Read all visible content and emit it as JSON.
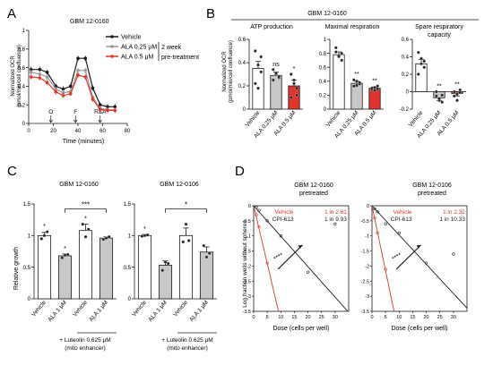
{
  "colors": {
    "black": "#1a1a1a",
    "grey": "#9a9a9a",
    "red": "#e1352b",
    "lightgrey": "#c8c8c8",
    "white": "#ffffff",
    "diag": "#555555"
  },
  "panels": {
    "A": "A",
    "B": "B",
    "C": "C",
    "D": "D"
  },
  "panelA": {
    "title": "GBM 12-0160",
    "ylabel_line1": "Normalized OCR",
    "ylabel_line2": "(pmol/min/cell confluence)",
    "xlabel": "Time (minutes)",
    "legend": [
      "Vehicle",
      "ALA 0.25 μM",
      "ALA 0.5 μM"
    ],
    "legend_note_line1": "2 week",
    "legend_note_line2": "pre-treatment",
    "injections": [
      "O",
      "F",
      "R&A"
    ]
  },
  "panelB": {
    "title": "GBM 12-0160",
    "ylabel_line1": "Normalized OCR",
    "ylabel_line2": "(pmol/min/cell confluence)",
    "subtitles": [
      "ATP production",
      "Maximal respiration",
      "Spare respiratory",
      "capacity"
    ]
  },
  "panelC": {
    "ylabel": "Relative growth",
    "footnote_line1": "+ Luteolin 0.625 μM",
    "footnote_line2": "(mito enhancer)"
  },
  "panelD": {
    "ylabel": "Log fraction wells without spheres",
    "xlabel": "Dose (cells per well)",
    "stars": "****"
  },
  "chart_data": [
    {
      "panel": "A",
      "type": "line",
      "title": "GBM 12-0160",
      "xlabel": "Time (minutes)",
      "ylabel": "Normalized OCR (pmol/min/cell confluence)",
      "xlim": [
        0,
        80
      ],
      "ylim": [
        0,
        1.0
      ],
      "xticks": [
        0,
        20,
        40,
        60,
        80
      ],
      "yticks": [
        0.0,
        0.2,
        0.4,
        0.6,
        0.8,
        1.0
      ],
      "x": [
        2,
        9,
        15,
        22,
        28,
        34,
        40,
        46,
        52,
        58,
        64,
        70
      ],
      "series": [
        {
          "name": "Vehicle",
          "color": "#1a1a1a",
          "values": [
            0.58,
            0.58,
            0.55,
            0.4,
            0.37,
            0.4,
            0.7,
            0.7,
            0.38,
            0.2,
            0.18,
            0.18
          ]
        },
        {
          "name": "ALA 0.25 μM",
          "color": "#9a9a9a",
          "values": [
            0.55,
            0.53,
            0.5,
            0.37,
            0.33,
            0.34,
            0.57,
            0.57,
            0.28,
            0.16,
            0.15,
            0.14
          ]
        },
        {
          "name": "ALA 0.5 μM",
          "color": "#e1352b",
          "values": [
            0.5,
            0.49,
            0.44,
            0.34,
            0.3,
            0.32,
            0.52,
            0.5,
            0.26,
            0.15,
            0.14,
            0.14
          ]
        }
      ],
      "annotations": [
        "O",
        "F",
        "R&A"
      ],
      "legend_note": "2 week pre-treatment"
    },
    {
      "panel": "B-ATP",
      "type": "bar",
      "title": "ATP production",
      "categories": [
        "Vehicle",
        "ALA 0.25 μM",
        "ALA 0.5 μM"
      ],
      "values": [
        0.35,
        0.29,
        0.2
      ],
      "errors": [
        0.06,
        0.03,
        0.05
      ],
      "points": [
        [
          0.5,
          0.38,
          0.32,
          0.22,
          0.18,
          0.45
        ],
        [
          0.34,
          0.3,
          0.27,
          0.25,
          0.31,
          0.28
        ],
        [
          0.3,
          0.22,
          0.12,
          0.1,
          0.25,
          0.18
        ]
      ],
      "significance": [
        "",
        "ns",
        "*"
      ],
      "colors": [
        "#ffffff",
        "#c8c8c8",
        "#e1352b"
      ],
      "ylim": [
        0.0,
        0.6
      ],
      "yticks": [
        0.0,
        0.2,
        0.4,
        0.6
      ]
    },
    {
      "panel": "B-MAX",
      "type": "bar",
      "title": "Maximal respiration",
      "categories": [
        "Vehicle",
        "ALA 0.25 μM",
        "ALA 0.5 μM"
      ],
      "values": [
        0.78,
        0.37,
        0.3
      ],
      "errors": [
        0.04,
        0.03,
        0.02
      ],
      "points": [
        [
          0.82,
          0.75,
          0.7,
          0.88,
          0.76,
          0.8
        ],
        [
          0.33,
          0.4,
          0.36,
          0.42,
          0.34,
          0.38
        ],
        [
          0.28,
          0.27,
          0.33,
          0.3,
          0.31,
          0.29
        ]
      ],
      "significance": [
        "",
        "**",
        "**"
      ],
      "colors": [
        "#ffffff",
        "#c8c8c8",
        "#e1352b"
      ],
      "ylim": [
        0.0,
        1.0
      ],
      "yticks": [
        0.0,
        0.2,
        0.4,
        0.6,
        0.8,
        1.0
      ]
    },
    {
      "panel": "B-SPARE",
      "type": "bar",
      "title": "Spare respiratory capacity",
      "categories": [
        "Vehicle",
        "ALA 0.25 μM",
        "ALA 0.5 μM"
      ],
      "values": [
        0.32,
        -0.07,
        -0.02
      ],
      "errors": [
        0.05,
        0.03,
        0.03
      ],
      "points": [
        [
          0.45,
          0.38,
          0.28,
          0.2,
          0.32,
          0.35
        ],
        [
          -0.05,
          -0.1,
          -0.12,
          0.0,
          -0.08,
          -0.04
        ],
        [
          -0.05,
          -0.1,
          0.02,
          0.0,
          -0.03,
          -0.01
        ]
      ],
      "significance": [
        "",
        "**",
        "**"
      ],
      "colors": [
        "#ffffff",
        "#c8c8c8",
        "#e1352b"
      ],
      "ylim": [
        -0.2,
        0.6
      ],
      "yticks": [
        -0.2,
        0.0,
        0.2,
        0.4,
        0.6
      ]
    },
    {
      "panel": "C-0160",
      "type": "bar",
      "title": "GBM 12-0160",
      "ylabel": "Relative growth",
      "categories": [
        "Vehicle",
        "ALA 1 μM",
        "Vehicle",
        "ALA 1 μM"
      ],
      "values": [
        1.0,
        0.68,
        1.08,
        0.96
      ],
      "errors": [
        0.05,
        0.03,
        0.1,
        0.02
      ],
      "points": [
        [
          0.95,
          1.0,
          1.06
        ],
        [
          0.65,
          0.69,
          0.7
        ],
        [
          1.18,
          0.98,
          1.1
        ],
        [
          0.94,
          0.96,
          0.98
        ]
      ],
      "colors": [
        "#ffffff",
        "#c8c8c8",
        "#ffffff",
        "#c8c8c8"
      ],
      "significance": "***",
      "ylim": [
        0.0,
        1.5
      ],
      "yticks": [
        0.0,
        0.5,
        1.0,
        1.5
      ],
      "group_label": "+ Luteolin 0.625 μM (mito enhancer)"
    },
    {
      "panel": "C-0106",
      "type": "bar",
      "title": "GBM 12-0106",
      "categories": [
        "Vehicle",
        "ALA 1 μM",
        "Vehicle",
        "ALA 1 μM"
      ],
      "values": [
        1.0,
        0.53,
        1.0,
        0.74
      ],
      "errors": [
        0.02,
        0.07,
        0.12,
        0.08
      ],
      "points": [
        [
          0.99,
          1.0,
          1.01
        ],
        [
          0.45,
          0.58,
          0.56
        ],
        [
          0.9,
          1.18,
          0.92
        ],
        [
          0.84,
          0.66,
          0.72
        ]
      ],
      "colors": [
        "#ffffff",
        "#c8c8c8",
        "#ffffff",
        "#c8c8c8"
      ],
      "significance": "*",
      "ylim": [
        0.0,
        1.5
      ],
      "yticks": [
        0.0,
        0.5,
        1.0,
        1.5
      ],
      "group_label": "+ Luteolin 0.625 μM (mito enhancer)"
    },
    {
      "panel": "D-0160",
      "type": "line",
      "title_line1": "GBM 12-0160",
      "title_line2": "pretreated",
      "xlabel": "Dose (cells per well)",
      "ylabel": "Log fraction wells without spheres",
      "xlim": [
        0,
        35
      ],
      "ylim": [
        -3.5,
        0
      ],
      "xticks": [
        0,
        5,
        10,
        15,
        20,
        25,
        30
      ],
      "yticks": [
        0.0,
        -0.5,
        -1.0,
        -1.5,
        -2.0,
        -2.5,
        -3.0,
        -3.5
      ],
      "series": [
        {
          "name": "Vehicle",
          "color": "#e1352b",
          "frequency": "1 in 2.61",
          "slope": -0.383,
          "points": [
            [
              1,
              -0.3
            ],
            [
              2,
              -0.7
            ],
            [
              5,
              -1.9
            ]
          ]
        },
        {
          "name": "CPI-613",
          "color": "#1a1a1a",
          "frequency": "1 in 9.93",
          "slope": -0.101,
          "points": [
            [
              1,
              -0.05
            ],
            [
              2,
              -0.15
            ],
            [
              5,
              -0.5
            ],
            [
              10,
              -1.0
            ],
            [
              20,
              -2.2
            ],
            [
              30,
              -0.6
            ]
          ]
        }
      ],
      "annotation": "****"
    },
    {
      "panel": "D-0106",
      "type": "line",
      "title_line1": "GBM 12-0106",
      "title_line2": "pretreated",
      "xlabel": "Dose (cells per well)",
      "xlim": [
        0,
        35
      ],
      "ylim": [
        -3.5,
        0
      ],
      "xticks": [
        0,
        5,
        10,
        15,
        20,
        25,
        30
      ],
      "yticks": [
        0.0,
        -0.5,
        -1.0,
        -1.5,
        -2.0,
        -2.5,
        -3.0,
        -3.5
      ],
      "series": [
        {
          "name": "Vehicle",
          "color": "#e1352b",
          "frequency": "1 in 2.32",
          "slope": -0.431,
          "points": [
            [
              1,
              -0.4
            ],
            [
              2,
              -0.9
            ],
            [
              5,
              -2.1
            ]
          ]
        },
        {
          "name": "CPI-613",
          "color": "#1a1a1a",
          "frequency": "1 in 10.33",
          "slope": -0.097,
          "points": [
            [
              1,
              -0.1
            ],
            [
              2,
              -0.2
            ],
            [
              5,
              -0.6
            ],
            [
              10,
              -0.9
            ],
            [
              20,
              -1.9
            ],
            [
              30,
              -1.6
            ]
          ]
        }
      ],
      "annotation": "****"
    }
  ]
}
